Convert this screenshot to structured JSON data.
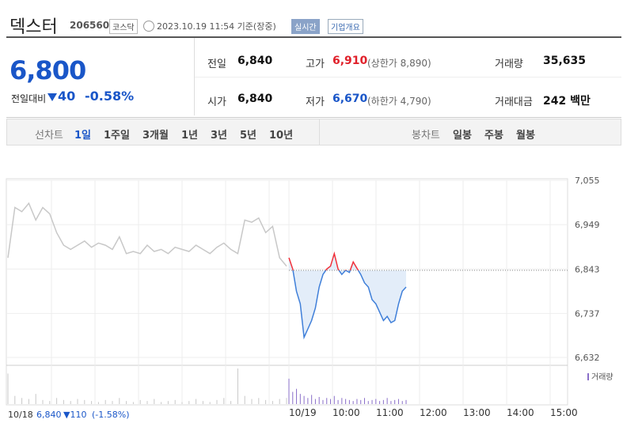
{
  "header": {
    "name": "덱스터",
    "code": "206560",
    "market": "코스닥",
    "timestamp": "2023.10.19 11:54 기준(장중)",
    "realtime": "실시간",
    "overview": "기업개요"
  },
  "price": {
    "current": "6,800",
    "change_label": "전일대비",
    "change": "40",
    "rate": "-0.58%"
  },
  "stats": [
    [
      {
        "label": "전일",
        "value": "6,840"
      },
      {
        "label": "고가",
        "value": "6,910",
        "note": "(상한가 8,890)"
      },
      {
        "label": "거래량",
        "value": "35,635"
      }
    ],
    [
      {
        "label": "시가",
        "value": "6,840"
      },
      {
        "label": "저가",
        "value": "6,670",
        "note": "(하한가 4,790)"
      },
      {
        "label": "거래대금",
        "value": "242 백만"
      }
    ]
  ],
  "tabs": {
    "line_label": "선차트",
    "line": [
      "1일",
      "1주일",
      "3개월",
      "1년",
      "3년",
      "5년",
      "10년"
    ],
    "candle_label": "봉차트",
    "candle": [
      "일봉",
      "주봉",
      "월봉"
    ]
  },
  "chart_data": {
    "type": "line",
    "ylim": [
      6632,
      7055
    ],
    "yticks": [
      {
        "value": 7055,
        "label": "7,055"
      },
      {
        "value": 6949,
        "label": "6,949"
      },
      {
        "value": 6843,
        "label": "6,843"
      },
      {
        "value": 6737,
        "label": "6,737"
      },
      {
        "value": 6632,
        "label": "6,632"
      }
    ],
    "xticks": [
      "10/19",
      "10:00",
      "11:00",
      "12:00",
      "13:00",
      "14:00",
      "15:00"
    ],
    "reference": 6840,
    "series": [
      {
        "color": "#c8c8c8",
        "values": [
          6870,
          6990,
          6980,
          7000,
          6960,
          6990,
          6975,
          6930,
          6900,
          6890,
          6900,
          6910,
          6895,
          6905,
          6900,
          6890,
          6920,
          6880,
          6885,
          6880,
          6900,
          6885,
          6890,
          6880,
          6895,
          6890,
          6885,
          6900,
          6890,
          6880,
          6895,
          6905,
          6890,
          6880,
          6960,
          6955,
          6965,
          6930,
          6945,
          6870,
          6850
        ]
      },
      {
        "color": "#3f7fd9",
        "up_color": "#f0303a",
        "values": [
          6870,
          6843,
          6790,
          6760,
          6680,
          6700,
          6720,
          6750,
          6800,
          6830,
          6843,
          6850,
          6880,
          6843,
          6830,
          6840,
          6835,
          6860,
          6845,
          6830,
          6810,
          6800,
          6770,
          6760,
          6740,
          6720,
          6730,
          6715,
          6720,
          6760,
          6790,
          6800
        ]
      }
    ],
    "volume_label": "거래량",
    "volume": [
      {
        "color": "#c8c8c8",
        "values": [
          30,
          8,
          6,
          5,
          10,
          4,
          3,
          6,
          4,
          3,
          5,
          4,
          3,
          2,
          4,
          3,
          6,
          3,
          2,
          4,
          3,
          5,
          2,
          3,
          4,
          2,
          3,
          5,
          3,
          2,
          4,
          6,
          3,
          35,
          8,
          5,
          6,
          4,
          3,
          5,
          6
        ]
      },
      {
        "color": "#8a6fc9",
        "values": [
          25,
          12,
          15,
          10,
          8,
          6,
          9,
          5,
          7,
          4,
          6,
          5,
          8,
          4,
          6,
          5,
          4,
          3,
          5,
          4,
          6,
          3,
          4,
          5,
          3,
          4,
          6,
          3,
          4,
          5,
          3,
          4
        ]
      }
    ],
    "prev_summary": {
      "date": "10/18",
      "close": "6,840",
      "change": "▼110",
      "rate": "(-1.58%)"
    }
  }
}
